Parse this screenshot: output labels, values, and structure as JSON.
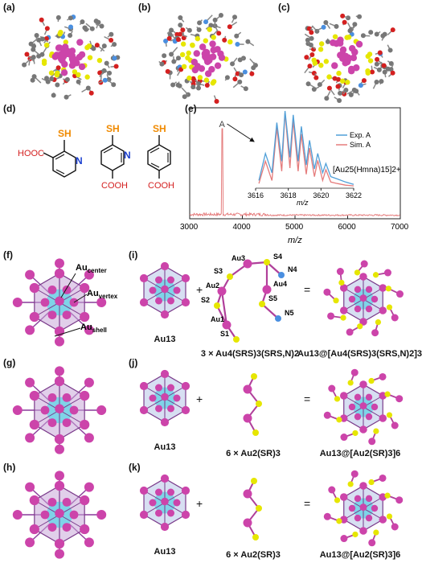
{
  "panels": {
    "a": "(a)",
    "b": "(b)",
    "c": "(c)",
    "d": "(d)",
    "e": "(e)",
    "f": "(f)",
    "g": "(g)",
    "h": "(h)",
    "i": "(i)",
    "j": "(j)",
    "k": "(k)"
  },
  "ligands": {
    "sh": "SH",
    "hooc": "HOOC",
    "cooh": "COOH",
    "n": "N"
  },
  "spectrum": {
    "peak_letter": "A",
    "xlabel": "m/z",
    "inset_xlabel": "m/z",
    "formula": "[Au25(Hmna)15]2+",
    "legend": [
      "Exp. A",
      "Sim. A"
    ],
    "colors": {
      "exp": "#4f9fd8",
      "sim": "#e57c7c"
    }
  },
  "chart_data": [
    {
      "type": "line",
      "title": "",
      "xlabel": "m/z",
      "ylabel": "",
      "xlim": [
        3000,
        7000
      ],
      "xticks": [
        3000,
        4000,
        5000,
        6000,
        7000
      ],
      "series": [
        {
          "name": "",
          "x": [
            3000,
            3300,
            3500,
            3580,
            3600,
            3618,
            3640,
            3700,
            4000,
            4500,
            5000,
            6000,
            7000
          ],
          "values": [
            0.02,
            0.03,
            0.04,
            0.06,
            0.4,
            1.0,
            0.3,
            0.05,
            0.03,
            0.02,
            0.02,
            0.01,
            0.01
          ]
        }
      ],
      "annotations": [
        "A"
      ]
    },
    {
      "type": "line",
      "title": "",
      "xlabel": "m/z",
      "xlim": [
        3616,
        3622
      ],
      "xticks": [
        3616,
        3618,
        3620,
        3622
      ],
      "series": [
        {
          "name": "Exp. A",
          "x": [
            3616.2,
            3616.6,
            3617.0,
            3617.3,
            3617.6,
            3617.8,
            3618.1,
            3618.3,
            3618.6,
            3618.8,
            3619.1,
            3619.3,
            3619.6,
            3619.8,
            3620.1,
            3620.3,
            3620.6,
            3621.0,
            3621.5,
            3622.0
          ],
          "values": [
            0.1,
            0.45,
            0.2,
            0.85,
            0.35,
            1.0,
            0.4,
            0.95,
            0.35,
            0.8,
            0.3,
            0.62,
            0.25,
            0.45,
            0.2,
            0.32,
            0.15,
            0.12,
            0.08,
            0.05
          ]
        },
        {
          "name": "Sim. A",
          "x": [
            3616.2,
            3616.6,
            3617.0,
            3617.3,
            3617.6,
            3617.8,
            3618.1,
            3618.3,
            3618.6,
            3618.8,
            3619.1,
            3619.3,
            3619.6,
            3619.8,
            3620.1,
            3620.3,
            3620.6,
            3621.0,
            3621.5,
            3622.0
          ],
          "values": [
            0.06,
            0.35,
            0.1,
            0.78,
            0.22,
            0.98,
            0.26,
            0.88,
            0.22,
            0.7,
            0.18,
            0.52,
            0.15,
            0.36,
            0.1,
            0.24,
            0.08,
            0.06,
            0.04,
            0.03
          ]
        }
      ],
      "legend": "top-right"
    }
  ],
  "structures": {
    "f_labels": [
      "Au",
      "center",
      "Au",
      "vertex",
      "Au",
      "shell"
    ],
    "i_labels": [
      "Au3",
      "S4",
      "S3",
      "N4",
      "Au2",
      "Au4",
      "S2",
      "S5",
      "Au1",
      "N5",
      "S1"
    ],
    "row1": {
      "left": "Au13",
      "mid": "3 × Au4(SRS)3(SRS,N)2",
      "right": "Au13@[Au4(SRS)3(SRS,N)2]3"
    },
    "row2": {
      "left": "Au13",
      "mid": "6 × Au2(SR)3",
      "right": "Au13@[Au2(SR)3]6"
    },
    "row3": {
      "left": "Au13",
      "mid": "6 × Au2(SR)3",
      "right": "Au13@[Au2(SR)3]6"
    },
    "plus": "+",
    "equals": "="
  },
  "colors": {
    "gold": "#cc44aa",
    "sulfur": "#e6e600",
    "carbon": "#777777",
    "oxygen": "#d42020",
    "nitrogen": "#4a8fe0",
    "core": "#7fd4e8",
    "orange": "#f08a00"
  }
}
